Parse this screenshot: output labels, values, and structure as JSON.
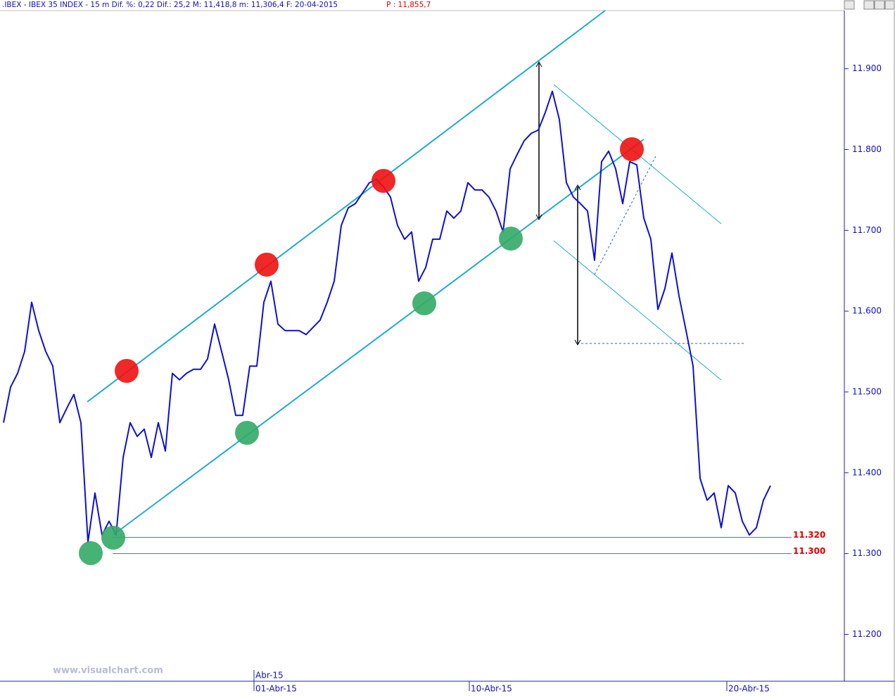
{
  "header": {
    "text": ".IBEX - IBEX 35 INDEX - 15 m Dif. %: 0,22 Dif.: 25,2 M: 11,418,8 m: 11,306,4 F: 20-04-2015",
    "price": "P : 11,855,7"
  },
  "watermark": "www.visualchart.com",
  "chart_data": {
    "type": "line",
    "color": "#1010d0",
    "values": [
      11.462,
      11.506,
      11.523,
      11.55,
      11.611,
      11.576,
      11.55,
      11.532,
      11.462,
      11.48,
      11.497,
      11.462,
      11.314,
      11.375,
      11.323,
      11.34,
      11.323,
      11.419,
      11.462,
      11.445,
      11.454,
      11.419,
      11.462,
      11.427,
      11.523,
      11.515,
      11.523,
      11.528,
      11.528,
      11.541,
      11.584,
      11.55,
      11.515,
      11.471,
      11.471,
      11.532,
      11.532,
      11.611,
      11.637,
      11.584,
      11.576,
      11.576,
      11.576,
      11.571,
      11.58,
      11.589,
      11.611,
      11.637,
      11.706,
      11.728,
      11.733,
      11.746,
      11.759,
      11.763,
      11.754,
      11.741,
      11.706,
      11.689,
      11.698,
      11.637,
      11.654,
      11.689,
      11.689,
      11.724,
      11.715,
      11.724,
      11.759,
      11.75,
      11.75,
      11.741,
      11.724,
      11.698,
      11.776,
      11.794,
      11.811,
      11.82,
      11.824,
      11.846,
      11.872,
      11.837,
      11.759,
      11.741,
      11.733,
      11.724,
      11.663,
      11.785,
      11.798,
      11.776,
      11.733,
      11.785,
      11.781,
      11.715,
      11.689,
      11.602,
      11.628,
      11.672,
      11.619,
      11.576,
      11.532,
      11.393,
      11.366,
      11.375,
      11.332,
      11.384,
      11.375,
      11.34,
      11.323,
      11.332,
      11.366,
      11.384
    ],
    "xlim": [
      -0.5,
      119.5
    ],
    "xticks": [
      {
        "value": 35.6,
        "label": "01-Abr-15"
      },
      {
        "value": 66.2,
        "label": "10-Abr-15"
      },
      {
        "value": 102.8,
        "label": "20-Abr-15"
      }
    ],
    "month_ticks": [
      {
        "value": 35.6,
        "label": "Abr-15"
      }
    ],
    "ylim": [
      11.142,
      11.972
    ],
    "yticks": [
      {
        "value": 11.2,
        "label": "11.200"
      },
      {
        "value": 11.3,
        "label": "11.300"
      },
      {
        "value": 11.4,
        "label": "11.400"
      },
      {
        "value": 11.5,
        "label": "11.500"
      },
      {
        "value": 11.6,
        "label": "11.600"
      },
      {
        "value": 11.7,
        "label": "11.700"
      },
      {
        "value": 11.8,
        "label": "11.800"
      },
      {
        "value": 11.9,
        "label": "11.900"
      }
    ],
    "levels": [
      {
        "value": 11.32,
        "label": "11.320"
      },
      {
        "value": 11.3,
        "label": "11.300"
      }
    ]
  }
}
